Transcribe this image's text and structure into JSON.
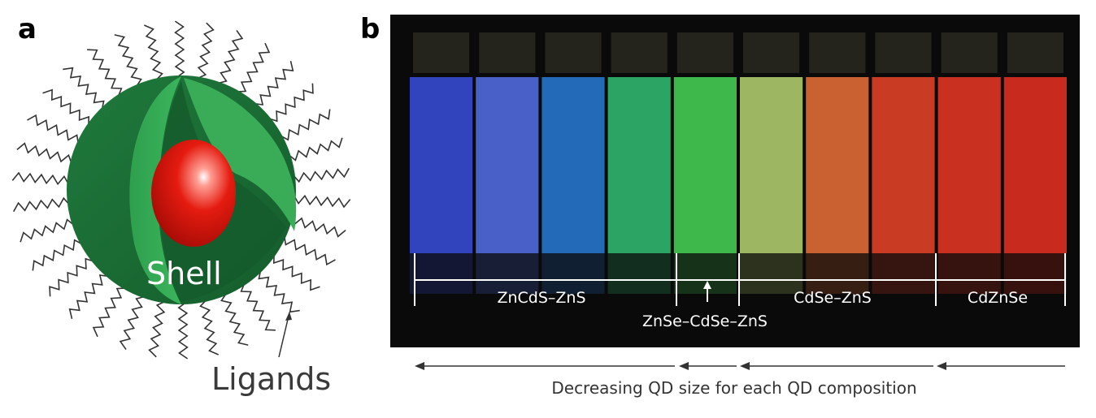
{
  "panels": {
    "a": {
      "letter": "a",
      "shell_label": "Shell",
      "ligands_label": "Ligands"
    },
    "b": {
      "letter": "b",
      "groups": [
        "ZnCdS–ZnS",
        "ZnSe–CdSe–ZnS",
        "CdSe–ZnS",
        "CdZnSe"
      ],
      "caption": "Decreasing QD size for each QD composition",
      "vial_colors": [
        "#3c53f0",
        "#5b78ff",
        "#2a86ea",
        "#36d07d",
        "#4de85e",
        "#c6e77a",
        "#ff7a3c",
        "#ff4a2a",
        "#ff3b26",
        "#ff3324"
      ]
    }
  },
  "colors": {
    "shell_dark": "#1d6b35",
    "shell_light": "#2fa04e",
    "core": "#e51b10",
    "ligand": "#333333",
    "photo_bg": "#0a0a0a"
  }
}
